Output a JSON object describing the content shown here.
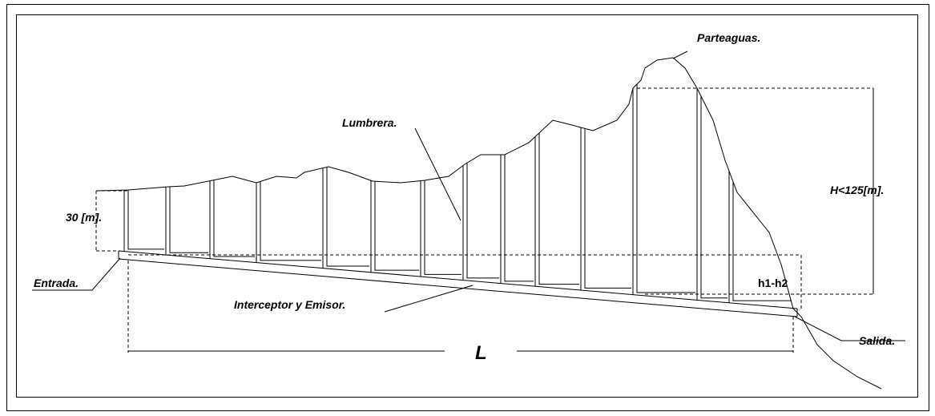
{
  "labels": {
    "parteaguas": "Parteaguas.",
    "lumbrera": "Lumbrera.",
    "depth": "30 [m].",
    "height": "H<125[m].",
    "entrada": "Entrada.",
    "interceptor": "Interceptor y Emisor.",
    "head": "h1-h2",
    "salida": "Salida.",
    "length": "L"
  }
}
